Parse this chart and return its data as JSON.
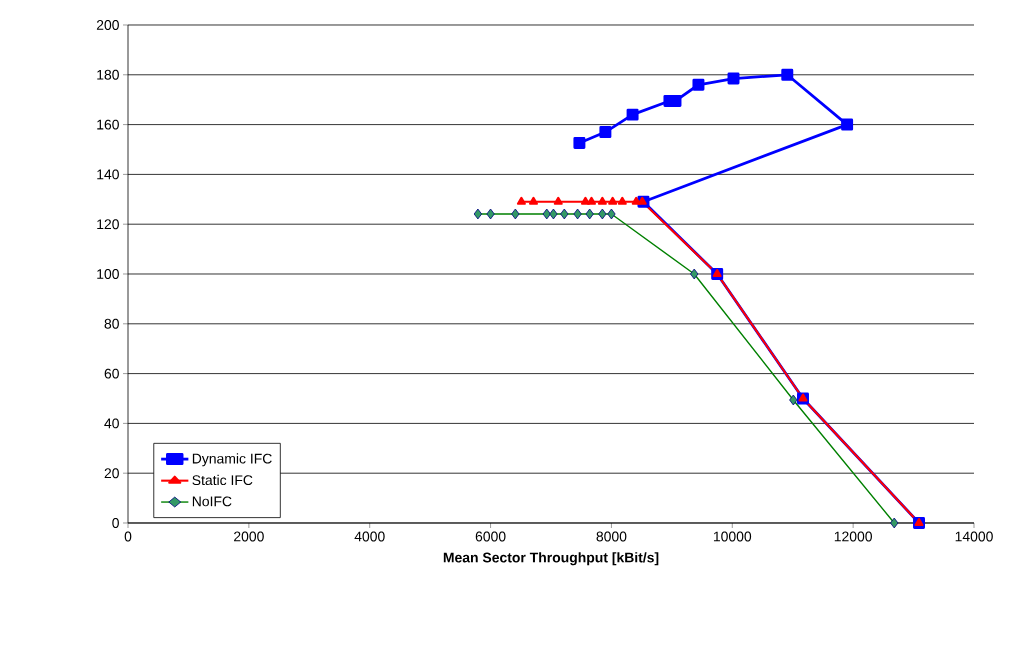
{
  "chart_data": {
    "type": "line",
    "xlabel": "Mean Sector Throughput [kBit/s]",
    "xlim": [
      0,
      14000
    ],
    "xticks": [
      0,
      2000,
      4000,
      6000,
      8000,
      10000,
      12000,
      14000
    ],
    "ylim": [
      0,
      200
    ],
    "yticks": [
      0,
      20,
      40,
      60,
      80,
      100,
      120,
      140,
      160,
      180,
      200
    ],
    "grid": "y",
    "legend": "bottom left",
    "series": [
      {
        "name": "Dynamic IFC",
        "color": "#0000ff",
        "marker": "square",
        "x": [
          7470,
          7900,
          8350,
          8960,
          9060,
          9440,
          10020,
          10910,
          11900,
          8530,
          9750,
          11170,
          13090
        ],
        "values": [
          152.6,
          157,
          164,
          169.5,
          169.5,
          176,
          178.5,
          180,
          160,
          129,
          100,
          50,
          0
        ]
      },
      {
        "name": "Static IFC",
        "color": "#ff0000",
        "marker": "triangle",
        "x": [
          6510,
          6710,
          7120,
          7570,
          7670,
          7850,
          8020,
          8180,
          8410,
          8510,
          9750,
          11170,
          13090
        ],
        "values": [
          129,
          129,
          129,
          129,
          129,
          129,
          129,
          129,
          129,
          129,
          100,
          50,
          0
        ]
      },
      {
        "name": "NoIFC",
        "color": "#008000",
        "marker": "diamond",
        "x": [
          5790,
          6000,
          6410,
          6930,
          7040,
          7220,
          7440,
          7640,
          7850,
          8000,
          9370,
          11010,
          12680
        ],
        "values": [
          124.1,
          124.1,
          124.1,
          124.1,
          124.1,
          124.1,
          124.1,
          124.1,
          124.1,
          124.1,
          100,
          49.4,
          0
        ]
      }
    ]
  }
}
